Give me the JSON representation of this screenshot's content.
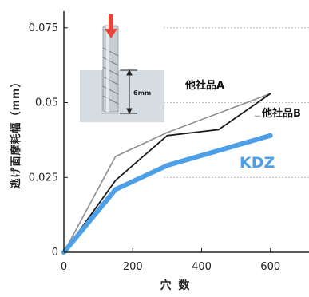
{
  "colors": {
    "kdz": "#4da0e8",
    "competitor_a": "#1a1a1a",
    "competitor_b": "#8e8e8e",
    "axis": "#222222",
    "grid": "#bcbcbc",
    "inset_bg": "#d6dde2",
    "arrow": "#e8463a"
  },
  "inset": {
    "depth_label": "6mm",
    "icons": [
      "end-mill-tool-icon",
      "down-arrow-icon",
      "depth-dimension-icon"
    ]
  },
  "chart_data": {
    "type": "line",
    "title": "",
    "xlabel": "穴 数",
    "ylabel": "逃げ面摩耗幅（mm）",
    "xlim": [
      0,
      650
    ],
    "ylim": [
      0,
      0.08
    ],
    "xticks": [
      0,
      200,
      400,
      600
    ],
    "xtick_labels": [
      "0",
      "200",
      "400",
      "600"
    ],
    "yticks": [
      0,
      0.025,
      0.05,
      0.075
    ],
    "ytick_labels": [
      "0",
      "0.025",
      "0.05",
      "0.075"
    ],
    "grid": "horizontal dotted at y ticks",
    "series": [
      {
        "name": "KDZ",
        "color": "#4da0e8",
        "x": [
          0,
          150,
          300,
          450,
          600
        ],
        "y": [
          0,
          0.021,
          0.029,
          0.034,
          0.039
        ]
      },
      {
        "name": "他社品A",
        "color": "#1a1a1a",
        "x": [
          0,
          150,
          300,
          450,
          600
        ],
        "y": [
          0,
          0.024,
          0.039,
          0.041,
          0.053
        ]
      },
      {
        "name": "他社品B",
        "color": "#8e8e8e",
        "x": [
          0,
          150,
          300,
          600
        ],
        "y": [
          0,
          0.032,
          0.04,
          0.053
        ]
      }
    ]
  }
}
